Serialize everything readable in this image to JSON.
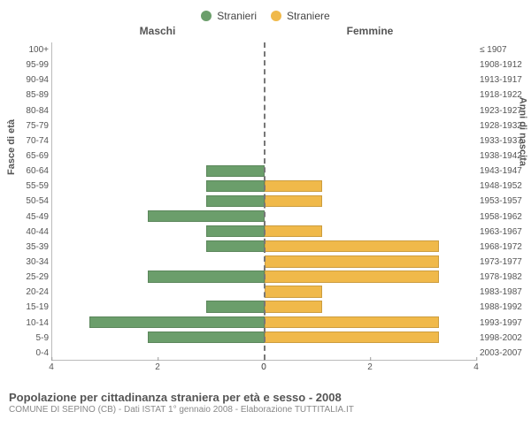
{
  "chart": {
    "type": "population-pyramid",
    "legend": [
      {
        "label": "Stranieri",
        "color": "#6b9e6b"
      },
      {
        "label": "Straniere",
        "color": "#f0b94a"
      }
    ],
    "header_left": "Maschi",
    "header_right": "Femmine",
    "axis_left_title": "Fasce di età",
    "axis_right_title": "Anni di nascita",
    "xmax": 4,
    "xticks_left": [
      4,
      2,
      0
    ],
    "xticks_right": [
      0,
      2,
      4
    ],
    "male_color": "#6b9e6b",
    "female_color": "#f0b94a",
    "background": "#ffffff",
    "rows": [
      {
        "age": "100+",
        "birth": "≤ 1907",
        "m": 0,
        "f": 0
      },
      {
        "age": "95-99",
        "birth": "1908-1912",
        "m": 0,
        "f": 0
      },
      {
        "age": "90-94",
        "birth": "1913-1917",
        "m": 0,
        "f": 0
      },
      {
        "age": "85-89",
        "birth": "1918-1922",
        "m": 0,
        "f": 0
      },
      {
        "age": "80-84",
        "birth": "1923-1927",
        "m": 0,
        "f": 0
      },
      {
        "age": "75-79",
        "birth": "1928-1932",
        "m": 0,
        "f": 0
      },
      {
        "age": "70-74",
        "birth": "1933-1937",
        "m": 0,
        "f": 0
      },
      {
        "age": "65-69",
        "birth": "1938-1942",
        "m": 0,
        "f": 0
      },
      {
        "age": "60-64",
        "birth": "1943-1947",
        "m": 1.1,
        "f": 0
      },
      {
        "age": "55-59",
        "birth": "1948-1952",
        "m": 1.1,
        "f": 1.1
      },
      {
        "age": "50-54",
        "birth": "1953-1957",
        "m": 1.1,
        "f": 1.1
      },
      {
        "age": "45-49",
        "birth": "1958-1962",
        "m": 2.2,
        "f": 0
      },
      {
        "age": "40-44",
        "birth": "1963-1967",
        "m": 1.1,
        "f": 1.1
      },
      {
        "age": "35-39",
        "birth": "1968-1972",
        "m": 1.1,
        "f": 3.3
      },
      {
        "age": "30-34",
        "birth": "1973-1977",
        "m": 0,
        "f": 3.3
      },
      {
        "age": "25-29",
        "birth": "1978-1982",
        "m": 2.2,
        "f": 3.3
      },
      {
        "age": "20-24",
        "birth": "1983-1987",
        "m": 0,
        "f": 1.1
      },
      {
        "age": "15-19",
        "birth": "1988-1992",
        "m": 1.1,
        "f": 1.1
      },
      {
        "age": "10-14",
        "birth": "1993-1997",
        "m": 3.3,
        "f": 3.3
      },
      {
        "age": "5-9",
        "birth": "1998-2002",
        "m": 2.2,
        "f": 3.3
      },
      {
        "age": "0-4",
        "birth": "2003-2007",
        "m": 0,
        "f": 0
      }
    ]
  },
  "caption": {
    "title": "Popolazione per cittadinanza straniera per età e sesso - 2008",
    "subtitle": "COMUNE DI SEPINO (CB) - Dati ISTAT 1° gennaio 2008 - Elaborazione TUTTITALIA.IT"
  }
}
